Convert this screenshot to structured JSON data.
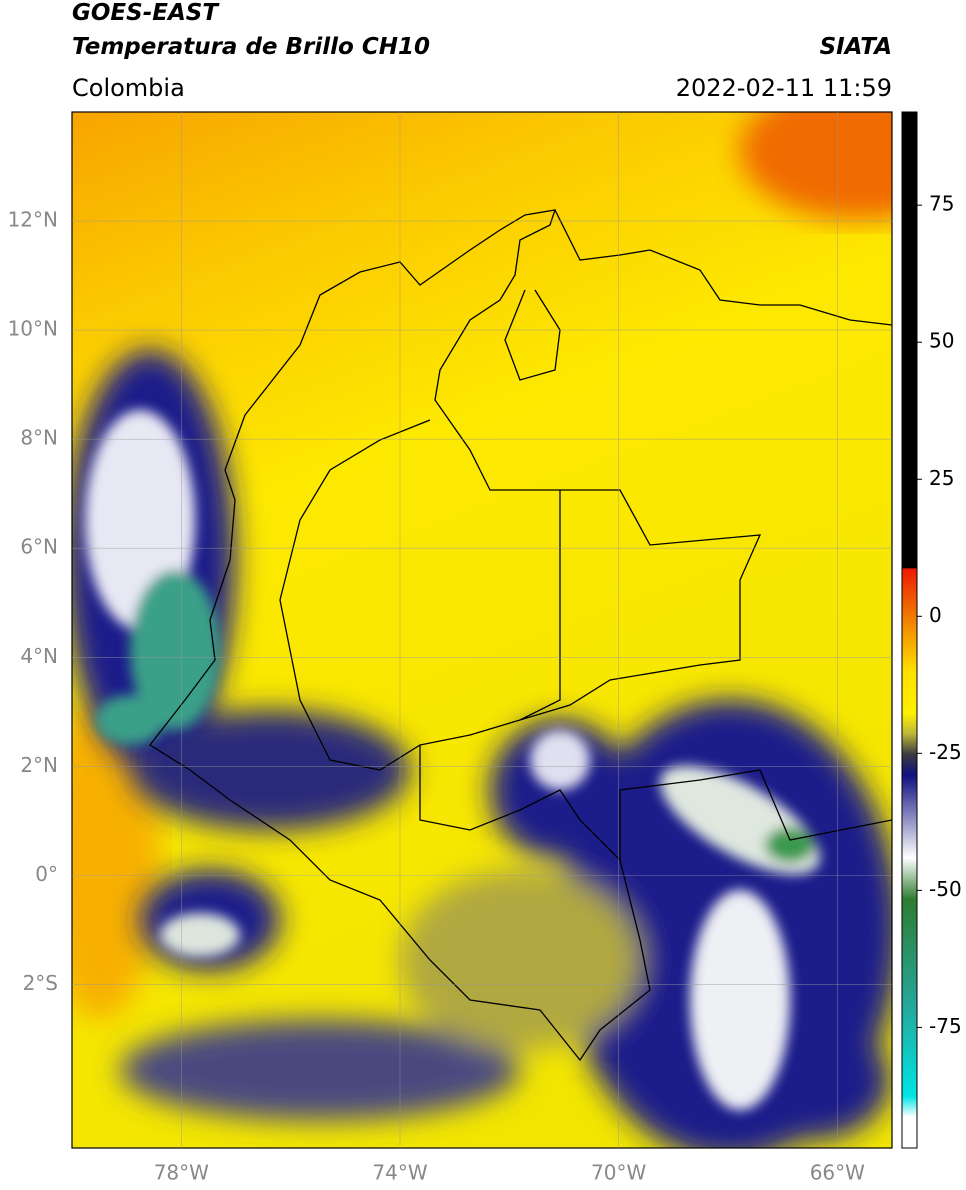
{
  "header": {
    "title": "GOES-EAST",
    "subtitle": "Temperatura de Brillo CH10",
    "source": "SIATA",
    "region": "Colombia",
    "timestamp": "2022-02-11 11:59"
  },
  "map": {
    "xlim": [
      -80,
      -65
    ],
    "ylim": [
      -5,
      14
    ],
    "xticks": [
      {
        "value": -78,
        "label": "78°W"
      },
      {
        "value": -74,
        "label": "74°W"
      },
      {
        "value": -70,
        "label": "70°W"
      },
      {
        "value": -66,
        "label": "66°W"
      }
    ],
    "yticks": [
      {
        "value": 12,
        "label": "12°N"
      },
      {
        "value": 10,
        "label": "10°N"
      },
      {
        "value": 8,
        "label": "8°N"
      },
      {
        "value": 6,
        "label": "6°N"
      },
      {
        "value": 4,
        "label": "4°N"
      },
      {
        "value": 2,
        "label": "2°N"
      },
      {
        "value": 0,
        "label": "0°"
      },
      {
        "value": -2,
        "label": "2°S"
      }
    ]
  },
  "colorbar": {
    "lim": [
      -97,
      92
    ],
    "ticks": [
      75,
      50,
      25,
      0,
      -25,
      -50,
      -75
    ]
  }
}
